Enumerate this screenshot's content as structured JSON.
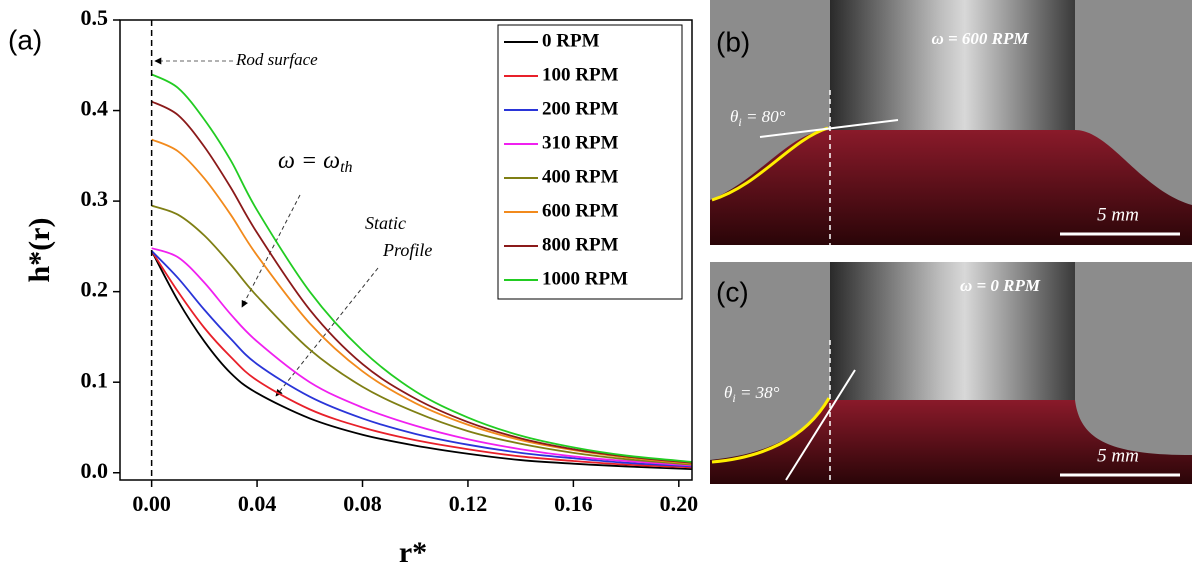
{
  "chart_data": {
    "type": "line",
    "panel_label": "(a)",
    "x_label": "r*",
    "y_label": "h*(r)",
    "annotations": {
      "rod": "Rod surface",
      "threshold_main": "ω = ω",
      "threshold_sub": "th",
      "static_1": "Static",
      "static_2": "Profile"
    },
    "x": [
      0,
      0.01,
      0.02,
      0.03,
      0.04,
      0.06,
      0.08,
      0.1,
      0.12,
      0.14,
      0.16,
      0.18,
      0.205
    ],
    "series": [
      {
        "name": "0 RPM",
        "color": "#000000",
        "values": [
          0.245,
          0.19,
          0.145,
          0.11,
          0.088,
          0.06,
          0.042,
          0.03,
          0.021,
          0.014,
          0.01,
          0.007,
          0.004
        ]
      },
      {
        "name": "100 RPM",
        "color": "#e8202a",
        "values": [
          0.245,
          0.2,
          0.16,
          0.128,
          0.102,
          0.07,
          0.05,
          0.036,
          0.026,
          0.018,
          0.013,
          0.009,
          0.006
        ]
      },
      {
        "name": "200 RPM",
        "color": "#2a35d8",
        "values": [
          0.245,
          0.215,
          0.18,
          0.148,
          0.12,
          0.084,
          0.06,
          0.043,
          0.031,
          0.022,
          0.016,
          0.011,
          0.007
        ]
      },
      {
        "name": "310 RPM",
        "color": "#f020f0",
        "values": [
          0.248,
          0.238,
          0.21,
          0.175,
          0.145,
          0.1,
          0.072,
          0.052,
          0.037,
          0.026,
          0.018,
          0.013,
          0.008
        ]
      },
      {
        "name": "400 RPM",
        "color": "#7f7f14",
        "values": [
          0.295,
          0.285,
          0.262,
          0.23,
          0.195,
          0.136,
          0.095,
          0.067,
          0.046,
          0.032,
          0.022,
          0.015,
          0.009
        ]
      },
      {
        "name": "600 RPM",
        "color": "#f28a1c",
        "values": [
          0.368,
          0.355,
          0.325,
          0.285,
          0.24,
          0.165,
          0.112,
          0.077,
          0.053,
          0.036,
          0.025,
          0.017,
          0.01
        ]
      },
      {
        "name": "800 RPM",
        "color": "#8b1a1a",
        "values": [
          0.41,
          0.395,
          0.36,
          0.315,
          0.265,
          0.18,
          0.12,
          0.082,
          0.056,
          0.038,
          0.026,
          0.018,
          0.011
        ]
      },
      {
        "name": "1000 RPM",
        "color": "#22cc22",
        "values": [
          0.44,
          0.425,
          0.39,
          0.345,
          0.29,
          0.2,
          0.135,
          0.09,
          0.061,
          0.041,
          0.028,
          0.019,
          0.012
        ]
      }
    ],
    "xlim": [
      -0.012,
      0.205
    ],
    "ylim": [
      -0.008,
      0.5
    ],
    "xticks": [
      {
        "value": 0,
        "label": "0.00"
      },
      0.04,
      0.08,
      0.12,
      0.16,
      {
        "value": 0.2,
        "label": "0.20"
      }
    ],
    "yticks": [
      {
        "value": 0,
        "label": "0.0"
      },
      0.1,
      0.2,
      0.3,
      0.4,
      0.5
    ],
    "legend": "top-right",
    "grid": false
  },
  "panels": [
    {
      "label": "(b)",
      "speed": "ω = 600 RPM",
      "angle_sym": "θ",
      "angle_sub": "i",
      "angle": " = 80°",
      "scale": "5 mm"
    },
    {
      "label": "(c)",
      "speed": "ω = 0 RPM",
      "angle_sym": "θ",
      "angle_sub": "i",
      "angle": " = 38°",
      "scale": "5 mm"
    }
  ]
}
